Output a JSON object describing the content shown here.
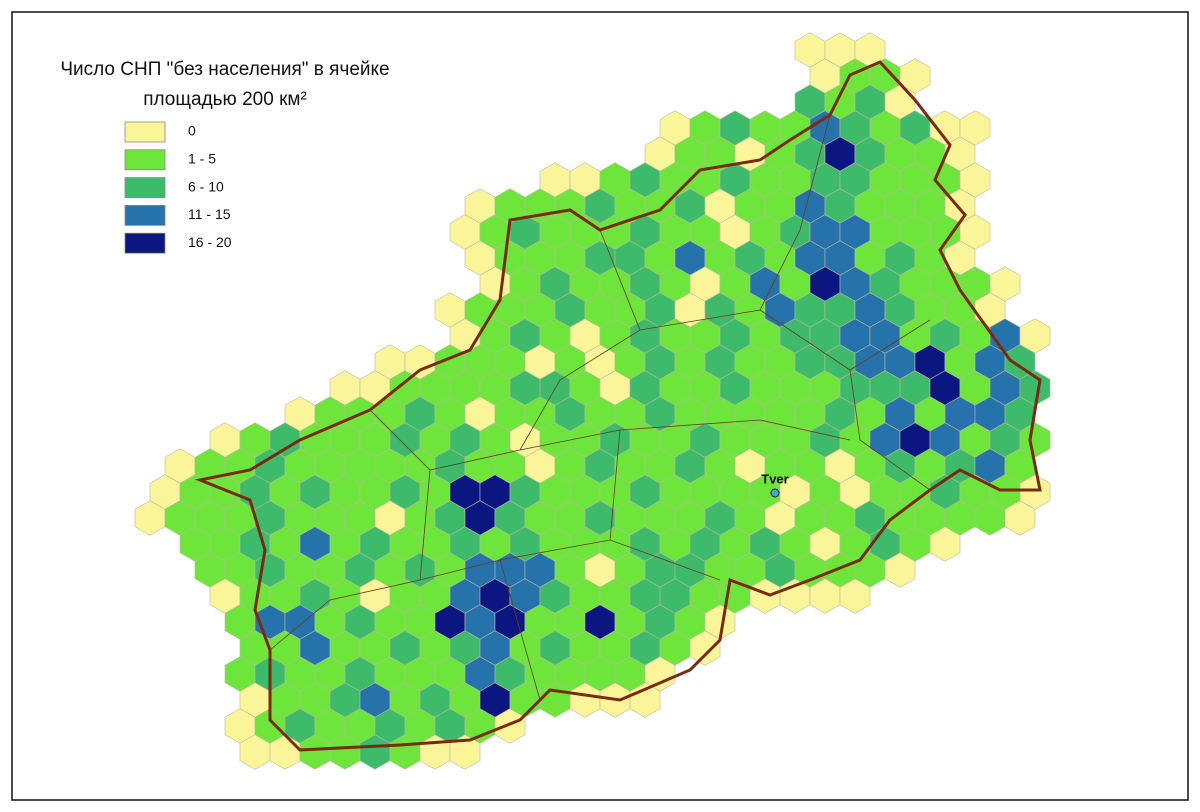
{
  "title": [
    "Число СНП \"без населения\" в ячейке",
    "площадью 200 км²"
  ],
  "legend": [
    {
      "label": "0",
      "color": "#fbf59a"
    },
    {
      "label": "1 - 5",
      "color": "#6de53a"
    },
    {
      "label": "6 - 10",
      "color": "#3dba6a"
    },
    {
      "label": "11 - 15",
      "color": "#2673ab"
    },
    {
      "label": "16 - 20",
      "color": "#0c1680"
    }
  ],
  "city": "Tver",
  "cells": [
    [
      null,
      null,
      null,
      null,
      null,
      null,
      null,
      null,
      null,
      null,
      null,
      null,
      null,
      null,
      null,
      null,
      null,
      null,
      null,
      null,
      null,
      null,
      0,
      0,
      0
    ],
    [
      null,
      null,
      null,
      null,
      null,
      null,
      null,
      null,
      null,
      null,
      null,
      null,
      null,
      null,
      null,
      null,
      null,
      null,
      null,
      null,
      null,
      null,
      0,
      1,
      1,
      0
    ],
    [
      null,
      null,
      null,
      null,
      null,
      null,
      null,
      null,
      null,
      null,
      null,
      null,
      null,
      null,
      null,
      null,
      null,
      null,
      null,
      null,
      null,
      null,
      2,
      1,
      2,
      0
    ],
    [
      null,
      null,
      null,
      null,
      null,
      null,
      null,
      null,
      null,
      null,
      null,
      null,
      null,
      null,
      null,
      null,
      null,
      0,
      1,
      2,
      1,
      1,
      3,
      2,
      1,
      2,
      0,
      0
    ],
    [
      null,
      null,
      null,
      null,
      null,
      null,
      null,
      null,
      null,
      null,
      null,
      null,
      null,
      null,
      null,
      null,
      null,
      0,
      1,
      1,
      0,
      1,
      2,
      4,
      2,
      1,
      1,
      0
    ],
    [
      null,
      null,
      null,
      null,
      null,
      null,
      null,
      null,
      null,
      null,
      null,
      null,
      null,
      0,
      0,
      1,
      2,
      1,
      1,
      2,
      1,
      1,
      2,
      2,
      1,
      1,
      1,
      0
    ],
    [
      null,
      null,
      null,
      null,
      null,
      null,
      null,
      null,
      null,
      null,
      null,
      0,
      1,
      1,
      1,
      2,
      1,
      1,
      2,
      0,
      1,
      1,
      3,
      2,
      1,
      1,
      1,
      0
    ],
    [
      null,
      null,
      null,
      null,
      null,
      null,
      null,
      null,
      null,
      null,
      0,
      1,
      2,
      1,
      1,
      1,
      2,
      1,
      1,
      0,
      1,
      2,
      3,
      3,
      1,
      1,
      1,
      0
    ],
    [
      null,
      null,
      null,
      null,
      null,
      null,
      null,
      null,
      null,
      null,
      null,
      0,
      1,
      1,
      1,
      2,
      2,
      1,
      3,
      1,
      2,
      1,
      3,
      3,
      1,
      2,
      1,
      0
    ],
    [
      null,
      null,
      null,
      null,
      null,
      null,
      null,
      null,
      null,
      null,
      null,
      0,
      1,
      2,
      1,
      1,
      2,
      1,
      0,
      1,
      3,
      1,
      4,
      3,
      2,
      1,
      1,
      1,
      0
    ],
    [
      null,
      null,
      null,
      null,
      null,
      null,
      null,
      null,
      null,
      null,
      0,
      1,
      1,
      1,
      2,
      1,
      1,
      2,
      0,
      2,
      1,
      3,
      2,
      2,
      3,
      2,
      1,
      1,
      0
    ],
    [
      null,
      null,
      null,
      null,
      null,
      null,
      null,
      null,
      null,
      null,
      0,
      1,
      2,
      1,
      0,
      1,
      2,
      1,
      1,
      2,
      1,
      2,
      2,
      3,
      3,
      1,
      2,
      1,
      3,
      0
    ],
    [
      null,
      null,
      null,
      null,
      null,
      null,
      null,
      null,
      0,
      0,
      1,
      1,
      1,
      0,
      1,
      0,
      1,
      2,
      1,
      2,
      1,
      1,
      2,
      2,
      3,
      3,
      4,
      1,
      3,
      2
    ],
    [
      null,
      null,
      null,
      null,
      null,
      null,
      0,
      0,
      1,
      1,
      1,
      1,
      2,
      2,
      1,
      0,
      2,
      1,
      1,
      2,
      1,
      1,
      1,
      2,
      2,
      2,
      4,
      1,
      3,
      2
    ],
    [
      null,
      null,
      null,
      null,
      null,
      0,
      1,
      1,
      1,
      2,
      1,
      0,
      1,
      1,
      2,
      1,
      1,
      2,
      1,
      1,
      1,
      1,
      1,
      2,
      1,
      3,
      1,
      3,
      3,
      2
    ],
    [
      null,
      null,
      0,
      1,
      2,
      1,
      1,
      1,
      2,
      1,
      2,
      1,
      0,
      1,
      1,
      2,
      1,
      1,
      2,
      1,
      1,
      1,
      2,
      1,
      3,
      4,
      3,
      1,
      2,
      1
    ],
    [
      null,
      0,
      1,
      1,
      2,
      1,
      1,
      1,
      1,
      1,
      2,
      1,
      1,
      0,
      1,
      2,
      1,
      1,
      2,
      1,
      0,
      1,
      1,
      0,
      1,
      2,
      1,
      2,
      3,
      1
    ],
    [
      0,
      1,
      1,
      2,
      1,
      2,
      1,
      1,
      2,
      1,
      4,
      4,
      2,
      1,
      1,
      1,
      2,
      1,
      1,
      1,
      1,
      0,
      1,
      0,
      1,
      1,
      2,
      1,
      1,
      0
    ],
    [
      0,
      1,
      1,
      1,
      2,
      1,
      1,
      1,
      0,
      1,
      2,
      4,
      2,
      1,
      1,
      2,
      1,
      1,
      1,
      2,
      1,
      0,
      1,
      1,
      2,
      1,
      1,
      1,
      1,
      0
    ],
    [
      null,
      1,
      1,
      2,
      1,
      3,
      1,
      2,
      1,
      1,
      2,
      1,
      2,
      1,
      1,
      1,
      2,
      1,
      2,
      1,
      2,
      1,
      0,
      1,
      2,
      1,
      0
    ],
    [
      null,
      null,
      1,
      1,
      2,
      1,
      1,
      2,
      1,
      2,
      1,
      3,
      3,
      3,
      1,
      0,
      1,
      2,
      2,
      1,
      1,
      2,
      1,
      1,
      1,
      0
    ],
    [
      null,
      null,
      0,
      1,
      1,
      2,
      1,
      0,
      1,
      1,
      3,
      4,
      3,
      2,
      1,
      1,
      2,
      2,
      1,
      1,
      0,
      0,
      0,
      0
    ],
    [
      null,
      null,
      null,
      1,
      3,
      3,
      1,
      2,
      1,
      1,
      4,
      3,
      4,
      1,
      1,
      4,
      1,
      2,
      1,
      0
    ],
    [
      null,
      null,
      null,
      1,
      1,
      3,
      1,
      1,
      2,
      1,
      2,
      3,
      1,
      2,
      1,
      1,
      2,
      1,
      0
    ],
    [
      null,
      null,
      null,
      1,
      2,
      1,
      1,
      2,
      1,
      1,
      1,
      3,
      2,
      1,
      1,
      1,
      1,
      0
    ],
    [
      null,
      null,
      null,
      0,
      1,
      1,
      2,
      3,
      1,
      2,
      1,
      4,
      1,
      1,
      0,
      0,
      0
    ],
    [
      null,
      null,
      null,
      0,
      1,
      2,
      1,
      1,
      2,
      1,
      2,
      1,
      0
    ],
    [
      null,
      null,
      null,
      0,
      0,
      1,
      1,
      2,
      1,
      0,
      0
    ]
  ]
}
